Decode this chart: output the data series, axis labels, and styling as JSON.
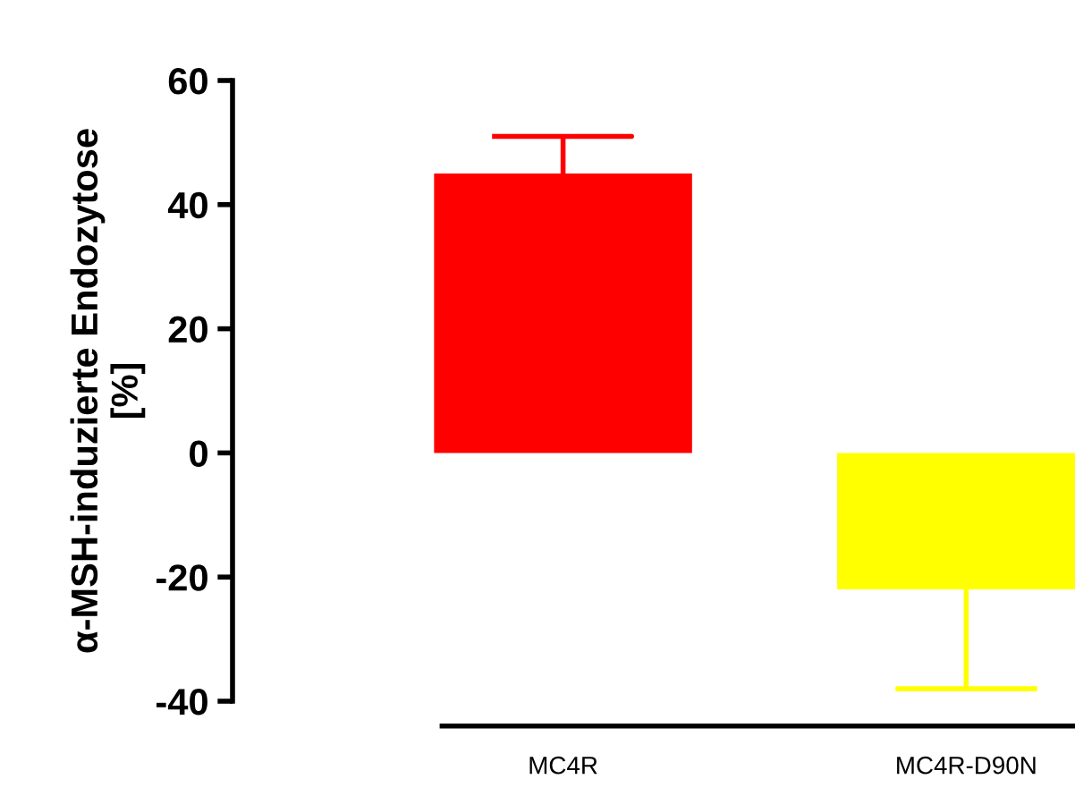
{
  "chart_data": {
    "type": "bar",
    "ylabel": "α-MSH-induzierte Endozytose\n[%]",
    "categories": [
      "MC4R",
      "MC4R-D90N"
    ],
    "values": [
      45,
      -22
    ],
    "colors": [
      "#ff0000",
      "#ffff00"
    ],
    "errors": [
      6,
      16
    ],
    "ylim": [
      -40,
      60
    ],
    "yticks": [
      {
        "value": -40,
        "label": "-40"
      },
      {
        "value": -20,
        "label": "-20"
      },
      0,
      20,
      40,
      60
    ],
    "grid": false,
    "legend": false
  }
}
